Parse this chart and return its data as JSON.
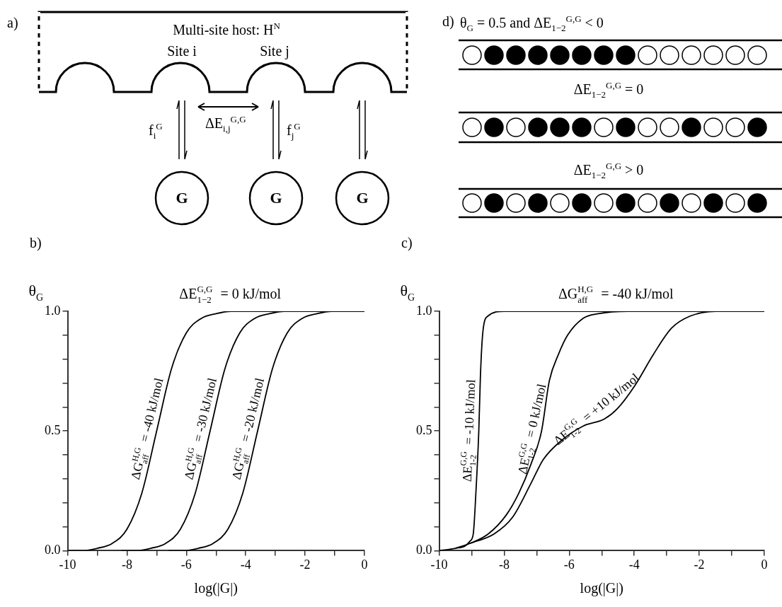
{
  "chart_data": [
    {
      "type": "other",
      "title": "a)",
      "annotations": [
        "Multi-site host: H$^{N}$",
        "Site i",
        "Site j",
        "f$_{i}$$^{G}$",
        "ΔE$_{i,j}$$^{G,G}$",
        "f$_{j}$$^{G}$",
        "G",
        "G",
        "G"
      ]
    },
    {
      "type": "other",
      "title": "d)",
      "annotations": [
        "θ$_{G}$ = 0.5 and  ΔE$_{1−2}$$^{G,G}$ < 0",
        "ΔE$_{1−2}$$^{G,G}$ = 0",
        "ΔE$_{1−2}$$^{G,G}$ > 0"
      ]
    },
    {
      "type": "line",
      "title": "b)",
      "subtitle": "ΔE$_{1−2}$$^{G,G}$ = 0 kJ/mol",
      "xlabel": "log(|G|)",
      "ylabel": "θ$_{G}$",
      "xlim": [
        -10,
        0
      ],
      "ylim": [
        0,
        1
      ],
      "xticks": [
        -10,
        {
          "value": -9,
          "label": null
        },
        -8,
        {
          "value": -7,
          "label": null
        },
        -6,
        {
          "value": -5,
          "label": null
        },
        -4,
        {
          "value": -3,
          "label": null
        },
        -2,
        {
          "value": -1,
          "label": null
        },
        0
      ],
      "yticks": [
        {
          "value": 0,
          "label": "0.0"
        },
        {
          "value": 0.1,
          "label": null
        },
        {
          "value": 0.2,
          "label": null
        },
        {
          "value": 0.3,
          "label": null
        },
        {
          "value": 0.4,
          "label": null
        },
        {
          "value": 0.5,
          "label": "0.5"
        },
        {
          "value": 0.6,
          "label": null
        },
        {
          "value": 0.7,
          "label": null
        },
        {
          "value": 0.8,
          "label": null
        },
        {
          "value": 0.9,
          "label": null
        },
        {
          "value": 1,
          "label": "1.0"
        }
      ],
      "grid": false,
      "legend": false,
      "marker": "none",
      "line_style": "solid",
      "series": [
        {
          "name": "ΔG$_{aff}$$^{H,G}$ = -40 kJ/mol",
          "color": "#000000",
          "x": [
            -10,
            -9.5,
            -9,
            -8.5,
            -8,
            -7.5,
            -7,
            -6.5,
            -6,
            -5.5,
            -5,
            -4.5,
            -4,
            0
          ],
          "values": [
            0,
            0,
            0.01,
            0.03,
            0.09,
            0.24,
            0.5,
            0.76,
            0.91,
            0.97,
            0.99,
            1,
            1,
            1
          ]
        },
        {
          "name": "ΔG$_{aff}$$^{H,G}$ = -30 kJ/mol",
          "color": "#000000",
          "x": [
            -8.2,
            -7.7,
            -7.2,
            -6.7,
            -6.2,
            -5.7,
            -5.2,
            -4.7,
            -4.2,
            -3.7,
            -3.2,
            -2.7,
            -2.2,
            0
          ],
          "values": [
            0,
            0,
            0.01,
            0.03,
            0.09,
            0.24,
            0.5,
            0.76,
            0.91,
            0.97,
            0.99,
            1,
            1,
            1
          ]
        },
        {
          "name": "ΔG$_{aff}$$^{H,G}$ = -20 kJ/mol",
          "color": "#000000",
          "x": [
            -6.6,
            -6.1,
            -5.6,
            -5.1,
            -4.6,
            -4.1,
            -3.6,
            -3.1,
            -2.6,
            -2.1,
            -1.6,
            -1.1,
            -0.6,
            0
          ],
          "values": [
            0,
            0,
            0.01,
            0.03,
            0.09,
            0.24,
            0.5,
            0.76,
            0.91,
            0.97,
            0.99,
            1,
            1,
            1
          ]
        }
      ]
    },
    {
      "type": "line",
      "title": "c)",
      "subtitle": "ΔG$_{aff}$$^{H,G}$ = -40 kJ/mol",
      "xlabel": "log(|G|)",
      "ylabel": "θ$_{G}$",
      "xlim": [
        -10,
        0
      ],
      "ylim": [
        0,
        1
      ],
      "xticks": [
        -10,
        {
          "value": -9,
          "label": null
        },
        -8,
        {
          "value": -7,
          "label": null
        },
        -6,
        {
          "value": -5,
          "label": null
        },
        -4,
        {
          "value": -3,
          "label": null
        },
        -2,
        {
          "value": -1,
          "label": null
        },
        0
      ],
      "yticks": [
        {
          "value": 0,
          "label": "0.0"
        },
        {
          "value": 0.1,
          "label": null
        },
        {
          "value": 0.2,
          "label": null
        },
        {
          "value": 0.3,
          "label": null
        },
        {
          "value": 0.4,
          "label": null
        },
        {
          "value": 0.5,
          "label": "0.5"
        },
        {
          "value": 0.6,
          "label": null
        },
        {
          "value": 0.7,
          "label": null
        },
        {
          "value": 0.8,
          "label": null
        },
        {
          "value": 0.9,
          "label": null
        },
        {
          "value": 1,
          "label": "1.0"
        }
      ],
      "grid": false,
      "legend": false,
      "marker": "none",
      "line_style": "solid",
      "series": [
        {
          "name": "ΔE$_{1-2}$$^{G,G}$ = -10 kJ/mol",
          "color": "#000000",
          "x": [
            -10,
            -9.5,
            -9.2,
            -9.05,
            -8.95,
            -8.87,
            -8.78,
            -8.73,
            -8.65,
            -8.5,
            -8,
            0
          ],
          "values": [
            0,
            0.01,
            0.02,
            0.04,
            0.07,
            0.24,
            0.5,
            0.73,
            0.92,
            0.98,
            1,
            1
          ]
        },
        {
          "name": "ΔE$_{1-2}$$^{G,G}$ = 0 kJ/mol",
          "color": "#000000",
          "x": [
            -9.5,
            -9.06,
            -8.49,
            -7.93,
            -7.55,
            -7.18,
            -6.85,
            -6.61,
            -6.33,
            -6.05,
            -5.58,
            -5.1,
            -4.2,
            0
          ],
          "values": [
            0.01,
            0.03,
            0.07,
            0.15,
            0.24,
            0.36,
            0.5,
            0.71,
            0.82,
            0.9,
            0.97,
            0.99,
            1,
            1
          ]
        },
        {
          "name": "ΔE$_{1-2}$$^{G,G}$ = +10 kJ/mol",
          "color": "#000000",
          "x": [
            -9.06,
            -8.31,
            -7.74,
            -7.18,
            -6.8,
            -6.24,
            -5.58,
            -4.92,
            -4.54,
            -3.98,
            -3.41,
            -2.85,
            -2.28,
            -1.5,
            0
          ],
          "values": [
            0.03,
            0.07,
            0.14,
            0.28,
            0.38,
            0.46,
            0.52,
            0.55,
            0.59,
            0.69,
            0.82,
            0.93,
            0.98,
            1,
            1
          ]
        }
      ]
    }
  ]
}
